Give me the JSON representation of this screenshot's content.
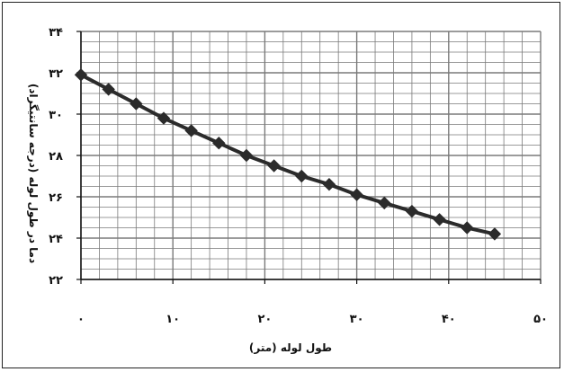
{
  "chart_data": {
    "type": "line",
    "title": "",
    "xlabel": "طول لوله (متر)",
    "ylabel": "دما در طول لوله (درجه سانتیگراد)",
    "xlim": [
      0,
      50
    ],
    "ylim": [
      22,
      34
    ],
    "x_ticks": [
      0,
      10,
      20,
      30,
      40,
      50
    ],
    "x_tick_labels": [
      "۰",
      "۱۰",
      "۲۰",
      "۳۰",
      "۴۰",
      "۵۰"
    ],
    "y_ticks": [
      22,
      24,
      26,
      28,
      30,
      32,
      34
    ],
    "y_tick_labels": [
      "۲۲",
      "۲۴",
      "۲۶",
      "۲۸",
      "۳۰",
      "۳۲",
      "۳۴"
    ],
    "grid": true,
    "legend": "none",
    "colors": {
      "line": "#2b2b2b",
      "grid": "#7a7a7a",
      "axis": "#111111"
    },
    "marker": "diamond",
    "series": [
      {
        "x": [
          0,
          3,
          6,
          9,
          12,
          15,
          18,
          21,
          24,
          27,
          30,
          33,
          36,
          39,
          42,
          45
        ],
        "y": [
          31.9,
          31.2,
          30.5,
          29.8,
          29.2,
          28.6,
          28.0,
          27.5,
          27.0,
          26.6,
          26.1,
          25.7,
          25.3,
          24.9,
          24.5,
          24.2
        ]
      }
    ]
  }
}
